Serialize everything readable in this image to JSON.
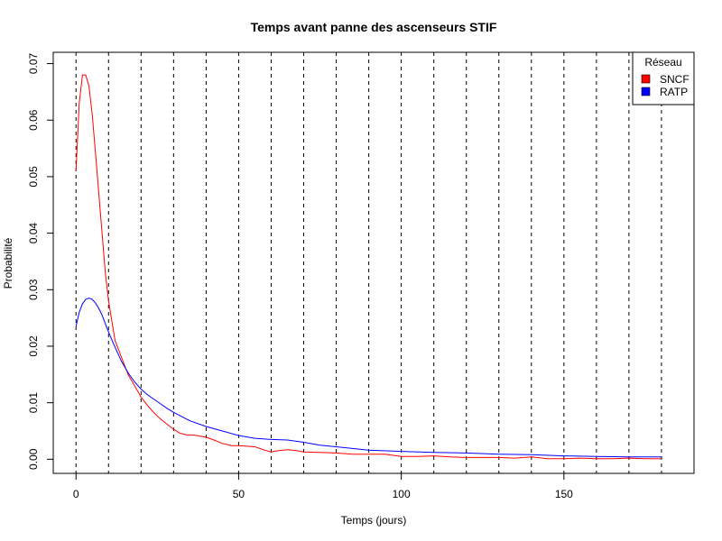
{
  "chart_data": {
    "type": "line",
    "title": "Temps avant panne des ascenseurs STIF",
    "xlabel": "Temps (jours)",
    "ylabel": "Probabilité",
    "xlim": [
      -7,
      190
    ],
    "ylim": [
      -0.0025,
      0.072
    ],
    "xticks": [
      "0",
      "50",
      "100",
      "150"
    ],
    "yticks": [
      "0.00",
      "0.01",
      "0.02",
      "0.03",
      "0.04",
      "0.05",
      "0.06",
      "0.07"
    ],
    "vlines": [
      0,
      10,
      20,
      30,
      40,
      50,
      60,
      70,
      80,
      90,
      100,
      110,
      120,
      130,
      140,
      150,
      160,
      170,
      180
    ],
    "grid": false,
    "legend": {
      "title": "Réseau",
      "position": "top-right"
    },
    "series": [
      {
        "name": "SNCF",
        "color": "#ff0000",
        "x": [
          0,
          1,
          2,
          3,
          4,
          5,
          6,
          7,
          8,
          9,
          10,
          12,
          14,
          16,
          18,
          20,
          22,
          24,
          26,
          28,
          30,
          32,
          34,
          36,
          38,
          40,
          42,
          45,
          48,
          50,
          55,
          58,
          60,
          62,
          65,
          68,
          70,
          75,
          80,
          85,
          90,
          95,
          100,
          105,
          110,
          115,
          120,
          125,
          130,
          135,
          140,
          145,
          150,
          155,
          160,
          165,
          170,
          175,
          180
        ],
        "values": [
          0.051,
          0.063,
          0.068,
          0.068,
          0.066,
          0.061,
          0.054,
          0.047,
          0.04,
          0.033,
          0.028,
          0.021,
          0.018,
          0.015,
          0.013,
          0.011,
          0.0095,
          0.0082,
          0.0071,
          0.0062,
          0.0053,
          0.0046,
          0.0043,
          0.0043,
          0.0041,
          0.0039,
          0.0035,
          0.0028,
          0.0024,
          0.0024,
          0.0022,
          0.0016,
          0.0013,
          0.0015,
          0.0017,
          0.0015,
          0.0013,
          0.0012,
          0.0011,
          0.0009,
          0.0009,
          0.0009,
          0.0005,
          0.0005,
          0.0006,
          0.0004,
          0.0003,
          0.0003,
          0.0003,
          0.0002,
          0.0004,
          0.0001,
          0.0001,
          0.0002,
          0.0001,
          0.0001,
          0.0002,
          0.0001,
          0.0001
        ]
      },
      {
        "name": "RATP",
        "color": "#0000ff",
        "x": [
          0,
          1,
          2,
          3,
          4,
          5,
          6,
          7,
          8,
          9,
          10,
          12,
          14,
          16,
          18,
          20,
          22,
          25,
          28,
          30,
          35,
          40,
          45,
          50,
          55,
          60,
          65,
          70,
          75,
          80,
          90,
          100,
          110,
          120,
          130,
          140,
          150,
          160,
          170,
          180
        ],
        "values": [
          0.0235,
          0.026,
          0.0275,
          0.0283,
          0.0285,
          0.0283,
          0.0276,
          0.0267,
          0.0255,
          0.024,
          0.0225,
          0.0198,
          0.0173,
          0.0153,
          0.0137,
          0.0124,
          0.0114,
          0.0102,
          0.009,
          0.0083,
          0.0068,
          0.0058,
          0.005,
          0.0042,
          0.0037,
          0.0035,
          0.0034,
          0.003,
          0.0025,
          0.0022,
          0.0016,
          0.0014,
          0.0012,
          0.0011,
          0.0009,
          0.0008,
          0.0006,
          0.0005,
          0.0004,
          0.0004
        ]
      }
    ]
  }
}
